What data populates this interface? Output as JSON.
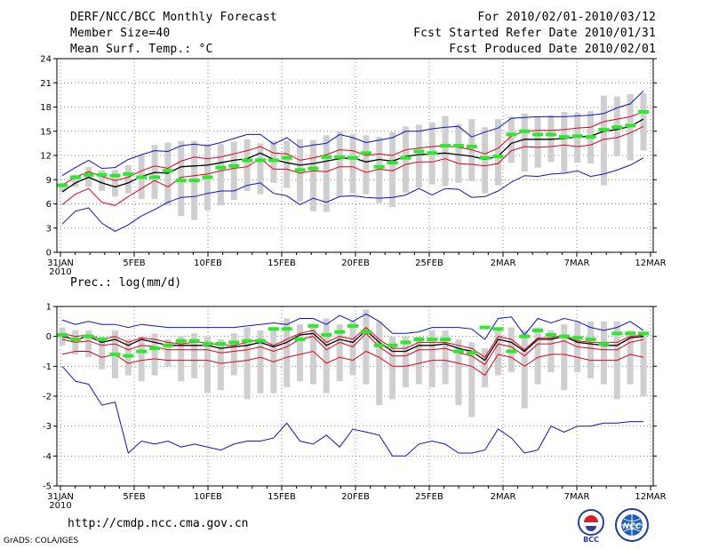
{
  "header": {
    "title": "DERF/NCC/BCC Monthly Forecast",
    "member_size": "Member Size=40",
    "variable": "Mean Surf. Temp.: °C",
    "forecast_range": "For 2010/02/01-2010/03/12",
    "started_refer": "Fcst Started Refer Date 2010/01/31",
    "produced": "Fcst Produced Date 2010/02/01"
  },
  "footer": {
    "url": "http://cmdp.ncc.cma.gov.cn",
    "grads": "GrADS: COLA/IGES",
    "logo_left": "BCC",
    "logo_right": "NCC"
  },
  "colors": {
    "mean": "#000000",
    "spread": "#e0001b",
    "extreme": "#1010c8",
    "box": "#cfcfcf",
    "obs": "#2ee82e",
    "grid": "#888888"
  },
  "chart_data": [
    {
      "type": "line",
      "title": "Mean Surf. Temp.: °C",
      "xlabels": [
        "31JAN",
        "5FEB",
        "10FEB",
        "15FEB",
        "20FEB",
        "25FEB",
        "2MAR",
        "7MAR",
        "12MAR"
      ],
      "xlabel_year": "2010",
      "ylim": [
        0,
        24
      ],
      "yticks": [
        "0",
        "3",
        "6",
        "9",
        "12",
        "15",
        "18",
        "21",
        "24"
      ],
      "series": [
        {
          "name": "ensemble-mean",
          "values": [
            7.5,
            8.6,
            9.3,
            8.6,
            8.1,
            8.6,
            9.4,
            9.9,
            9.8,
            10.6,
            10.7,
            10.8,
            11.1,
            11.4,
            11.6,
            12.3,
            11.5,
            11.1,
            10.8,
            11.0,
            11.3,
            11.6,
            11.7,
            11.2,
            11.5,
            11.3,
            11.9,
            12.1,
            12.2,
            12.3,
            12.1,
            11.9,
            11.5,
            11.9,
            13.5,
            14.0,
            14.0,
            14.0,
            14.1,
            14.3,
            14.4,
            15.0,
            15.2,
            15.6,
            16.5
          ]
        },
        {
          "name": "upper-spread",
          "values": [
            8.3,
            9.3,
            10.0,
            9.4,
            8.9,
            9.3,
            10.1,
            10.7,
            10.4,
            11.3,
            11.8,
            11.6,
            11.8,
            12.2,
            12.6,
            13.1,
            12.3,
            12.2,
            11.4,
            11.7,
            12.1,
            12.7,
            12.6,
            12.0,
            12.2,
            12.0,
            12.7,
            12.9,
            13.1,
            13.2,
            13.0,
            12.7,
            12.2,
            12.9,
            14.4,
            15.0,
            15.1,
            15.1,
            15.2,
            15.4,
            15.5,
            16.2,
            16.5,
            16.8,
            17.4
          ]
        },
        {
          "name": "lower-spread",
          "values": [
            5.9,
            7.2,
            7.9,
            6.2,
            5.8,
            6.9,
            7.9,
            8.9,
            8.1,
            9.3,
            9.5,
            9.7,
            10.1,
            10.4,
            10.6,
            11.6,
            10.3,
            10.3,
            9.8,
            10.1,
            10.0,
            10.6,
            10.6,
            9.9,
            10.3,
            10.1,
            10.9,
            11.2,
            11.2,
            11.6,
            11.0,
            10.9,
            10.7,
            11.0,
            12.6,
            13.1,
            13.0,
            13.1,
            13.3,
            13.1,
            13.3,
            14.0,
            14.2,
            14.8,
            15.6
          ]
        },
        {
          "name": "maximum",
          "values": [
            9.5,
            10.5,
            11.4,
            10.4,
            10.5,
            11.5,
            12.1,
            12.6,
            12.5,
            13.2,
            13.4,
            13.2,
            13.6,
            14.1,
            14.6,
            14.6,
            13.4,
            14.2,
            13.0,
            13.3,
            13.5,
            14.6,
            14.2,
            13.6,
            13.9,
            14.2,
            15.0,
            15.0,
            15.3,
            15.5,
            15.6,
            14.3,
            14.9,
            15.4,
            16.6,
            16.7,
            16.8,
            16.8,
            16.8,
            16.9,
            17.0,
            17.2,
            17.9,
            18.4,
            20.0
          ]
        },
        {
          "name": "minimum",
          "values": [
            3.5,
            5.1,
            5.5,
            3.6,
            2.6,
            3.4,
            4.5,
            5.3,
            6.2,
            6.8,
            6.9,
            7.3,
            7.6,
            7.6,
            8.3,
            8.6,
            7.3,
            7.0,
            5.9,
            6.7,
            6.2,
            6.9,
            7.0,
            6.8,
            6.7,
            6.8,
            7.1,
            7.9,
            7.1,
            7.9,
            7.8,
            6.8,
            6.9,
            7.6,
            8.7,
            9.5,
            9.4,
            9.7,
            9.8,
            10.1,
            9.4,
            9.7,
            10.2,
            10.8,
            11.7
          ]
        }
      ],
      "box_low": [
        7.5,
        8.1,
        8.1,
        7.6,
        6.9,
        7.3,
        6.6,
        6.6,
        5.8,
        4.5,
        4.0,
        5.2,
        5.8,
        6.5,
        7.6,
        7.2,
        8.6,
        8.0,
        6.3,
        5.1,
        5.0,
        6.9,
        7.3,
        7.2,
        6.1,
        5.6,
        7.4,
        8.0,
        8.4,
        8.2,
        8.6,
        8.8,
        7.3,
        8.3,
        11.1,
        10.0,
        10.5,
        11.2,
        9.9,
        11.1,
        11.0,
        8.3,
        11.9,
        11.4,
        12.6
      ],
      "box_high": [
        8.6,
        9.6,
        10.6,
        10.2,
        10.2,
        10.8,
        12.1,
        13.3,
        13.6,
        13.8,
        13.8,
        13.4,
        13.4,
        13.7,
        14.0,
        13.5,
        13.8,
        13.8,
        14.0,
        13.9,
        14.5,
        15.0,
        14.6,
        14.5,
        14.3,
        14.9,
        15.6,
        15.8,
        16.1,
        16.9,
        15.9,
        16.5,
        15.5,
        16.5,
        16.8,
        17.2,
        16.8,
        17.0,
        17.4,
        17.3,
        17.5,
        19.4,
        19.3,
        19.6,
        19.7
      ],
      "observed": [
        8.3,
        9.3,
        9.6,
        9.6,
        9.5,
        9.7,
        9.3,
        9.3,
        10.1,
        8.9,
        8.9,
        9.3,
        10.5,
        10.7,
        11.4,
        11.4,
        11.4,
        11.7,
        10.2,
        10.4,
        11.8,
        11.8,
        11.7,
        12.3,
        10.6,
        11.1,
        11.7,
        12.5,
        12.3,
        13.2,
        13.2,
        13.1,
        11.7,
        11.9,
        14.6,
        15.0,
        14.6,
        14.6,
        14.3,
        14.4,
        14.3,
        15.2,
        15.5,
        15.7,
        17.4
      ]
    },
    {
      "type": "line",
      "title": "Prec.: log(mm/d)",
      "xlabels": [
        "31JAN",
        "5FEB",
        "10FEB",
        "15FEB",
        "20FEB",
        "25FEB",
        "2MAR",
        "7MAR",
        "12MAR"
      ],
      "xlabel_year": "2010",
      "ylim": [
        -5,
        1
      ],
      "yticks": [
        "-5",
        "-4",
        "-3",
        "-2",
        "-1",
        "0",
        "1"
      ],
      "series": [
        {
          "name": "ensemble-mean",
          "values": [
            0.0,
            -0.1,
            0.0,
            -0.2,
            -0.1,
            -0.3,
            -0.1,
            -0.2,
            -0.3,
            -0.3,
            -0.3,
            -0.3,
            -0.4,
            -0.35,
            -0.3,
            -0.2,
            -0.35,
            -0.2,
            0.05,
            0.1,
            -0.3,
            -0.1,
            -0.2,
            0.2,
            -0.2,
            -0.5,
            -0.5,
            -0.3,
            -0.3,
            -0.25,
            -0.4,
            -0.5,
            -0.8,
            -0.1,
            -0.2,
            -0.5,
            -0.1,
            -0.1,
            0.0,
            -0.2,
            -0.25,
            -0.3,
            -0.3,
            -0.05,
            0.0
          ]
        },
        {
          "name": "upper-spread",
          "values": [
            0.1,
            0.0,
            0.05,
            -0.1,
            0.0,
            -0.2,
            -0.05,
            -0.1,
            -0.2,
            -0.25,
            -0.2,
            -0.2,
            -0.3,
            -0.3,
            -0.2,
            -0.1,
            -0.3,
            -0.1,
            0.1,
            0.2,
            -0.2,
            0.0,
            -0.1,
            0.3,
            -0.1,
            -0.4,
            -0.4,
            -0.2,
            -0.2,
            -0.2,
            -0.3,
            -0.4,
            -0.7,
            0.0,
            -0.1,
            -0.45,
            -0.05,
            -0.05,
            0.05,
            -0.15,
            -0.2,
            -0.2,
            -0.2,
            0.0,
            0.05
          ]
        },
        {
          "name": "lower-spread",
          "values": [
            -0.6,
            -0.5,
            -0.5,
            -0.7,
            -0.6,
            -0.9,
            -0.8,
            -0.75,
            -0.8,
            -0.8,
            -0.8,
            -0.8,
            -0.9,
            -0.85,
            -0.8,
            -0.7,
            -0.85,
            -0.7,
            -0.6,
            -0.5,
            -0.9,
            -0.7,
            -0.8,
            -0.5,
            -0.7,
            -1.0,
            -1.0,
            -0.9,
            -0.8,
            -0.8,
            -0.9,
            -1.0,
            -1.3,
            -0.6,
            -0.7,
            -1.0,
            -0.7,
            -0.6,
            -0.6,
            -0.7,
            -0.8,
            -0.8,
            -0.8,
            -0.6,
            -0.7
          ]
        },
        {
          "name": "maximum",
          "values": [
            0.55,
            0.4,
            0.5,
            0.4,
            0.4,
            0.3,
            0.4,
            0.35,
            0.3,
            0.3,
            0.3,
            0.3,
            0.3,
            0.3,
            0.35,
            0.4,
            0.45,
            0.4,
            0.6,
            0.6,
            0.4,
            0.7,
            0.5,
            0.75,
            0.5,
            0.1,
            0.1,
            0.15,
            0.3,
            0.3,
            0.3,
            0.25,
            -0.1,
            0.6,
            0.65,
            0.05,
            0.6,
            0.45,
            0.6,
            0.5,
            0.3,
            0.2,
            0.3,
            0.5,
            0.2
          ]
        },
        {
          "name": "minimum",
          "values": [
            -1.0,
            -1.5,
            -1.6,
            -2.3,
            -2.2,
            -3.9,
            -3.5,
            -3.6,
            -3.5,
            -3.7,
            -3.6,
            -3.7,
            -3.8,
            -3.6,
            -3.5,
            -3.5,
            -3.4,
            -2.9,
            -3.5,
            -3.6,
            -3.3,
            -3.7,
            -3.1,
            -3.2,
            -3.3,
            -4.0,
            -4.0,
            -3.6,
            -3.5,
            -3.6,
            -3.9,
            -3.9,
            -3.8,
            -3.1,
            -3.4,
            -3.9,
            -3.8,
            -3.0,
            -3.2,
            -3.0,
            -3.0,
            -2.9,
            -2.9,
            -2.85,
            -2.85
          ]
        },
        {
          "name": "mean-red",
          "values": [
            -0.1,
            -0.2,
            -0.15,
            -0.3,
            -0.25,
            -0.45,
            -0.3,
            -0.35,
            -0.45,
            -0.45,
            -0.45,
            -0.45,
            -0.55,
            -0.5,
            -0.45,
            -0.35,
            -0.5,
            -0.35,
            -0.1,
            0.0,
            -0.45,
            -0.2,
            -0.35,
            0.1,
            -0.35,
            -0.65,
            -0.65,
            -0.45,
            -0.45,
            -0.4,
            -0.55,
            -0.65,
            -0.95,
            -0.25,
            -0.35,
            -0.65,
            -0.25,
            -0.25,
            -0.15,
            -0.35,
            -0.4,
            -0.45,
            -0.45,
            -0.2,
            -0.1
          ]
        }
      ],
      "box_low": [
        -0.3,
        -0.6,
        -0.7,
        -1.1,
        -1.4,
        -1.3,
        -1.5,
        -1.3,
        -1.0,
        -1.5,
        -1.4,
        -1.9,
        -1.8,
        -1.3,
        -2.1,
        -1.9,
        -1.9,
        -1.7,
        -1.5,
        -1.6,
        -1.9,
        -1.5,
        -1.3,
        -1.6,
        -2.3,
        -2.1,
        -1.7,
        -1.6,
        -1.7,
        -1.6,
        -2.3,
        -2.7,
        -1.7,
        -1.3,
        -1.2,
        -2.4,
        -1.6,
        -1.2,
        -1.8,
        -1.2,
        -1.4,
        -1.6,
        -2.1,
        -1.6,
        -2.0
      ],
      "box_high": [
        0.3,
        0.2,
        0.2,
        0.0,
        0.2,
        -0.1,
        0.0,
        0.1,
        -0.1,
        0.0,
        0.1,
        0.0,
        -0.1,
        0.1,
        0.3,
        0.2,
        0.3,
        0.6,
        0.4,
        0.3,
        0.6,
        0.4,
        0.5,
        0.9,
        0.5,
        0.0,
        0.0,
        0.0,
        0.2,
        0.2,
        -0.1,
        -0.2,
        -0.4,
        0.3,
        0.3,
        0.2,
        0.3,
        0.2,
        0.4,
        0.5,
        0.5,
        0.5,
        0.5,
        0.2,
        0.1
      ],
      "observed": [
        0.05,
        -0.1,
        0.0,
        -0.1,
        -0.6,
        -0.65,
        -0.5,
        -0.4,
        -0.3,
        -0.15,
        -0.15,
        -0.25,
        -0.25,
        -0.2,
        -0.15,
        -0.15,
        0.25,
        0.25,
        -0.1,
        0.35,
        0.05,
        0.15,
        0.35,
        0.15,
        -0.3,
        -0.3,
        -0.2,
        -0.1,
        -0.1,
        -0.1,
        -0.5,
        -0.55,
        0.3,
        0.25,
        -0.5,
        0.0,
        0.2,
        0.05,
        0.0,
        -0.05,
        -0.1,
        -0.25,
        0.1,
        0.1,
        0.1
      ]
    }
  ]
}
